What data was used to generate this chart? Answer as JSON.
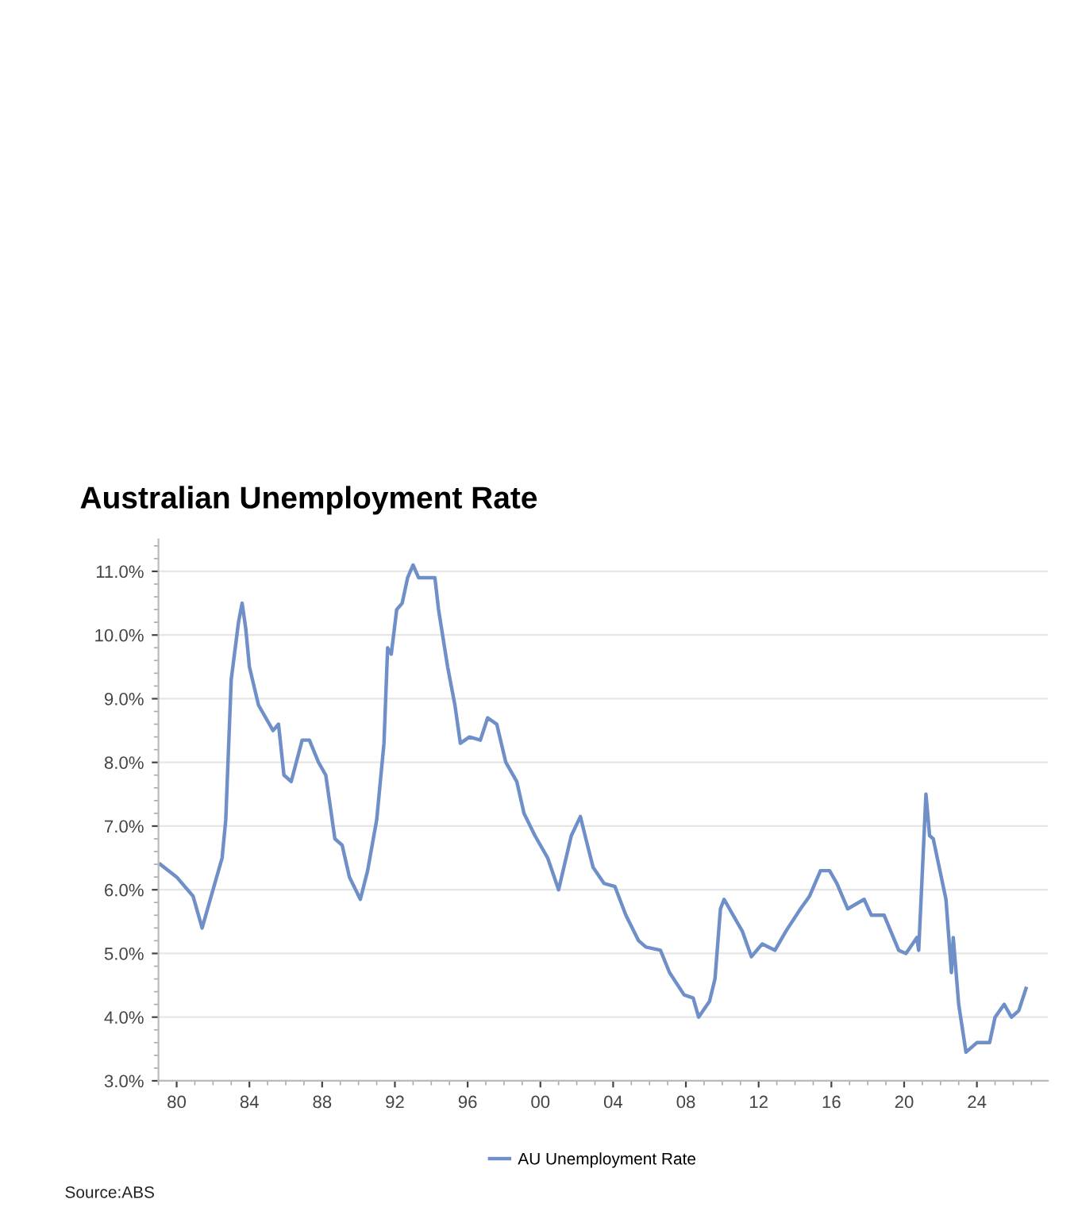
{
  "chart_data": {
    "type": "line",
    "title": "Australian Unemployment Rate",
    "x": [
      1979.1,
      1980.0,
      1980.9,
      1981.4,
      1981.9,
      1982.5,
      1982.7,
      1983.0,
      1983.4,
      1983.6,
      1983.8,
      1984.0,
      1984.5,
      1985.3,
      1985.6,
      1985.9,
      1986.3,
      1986.9,
      1987.3,
      1987.8,
      1988.2,
      1988.4,
      1988.7,
      1989.1,
      1989.5,
      1990.1,
      1990.5,
      1991.0,
      1991.4,
      1991.6,
      1991.8,
      1992.1,
      1992.4,
      1992.7,
      1993.0,
      1993.3,
      1993.7,
      1994.2,
      1994.4,
      1994.9,
      1995.3,
      1995.6,
      1996.1,
      1996.7,
      1997.1,
      1997.6,
      1998.1,
      1998.7,
      1999.1,
      1999.7,
      2000.4,
      2001.0,
      2001.7,
      2002.2,
      2002.5,
      2002.9,
      2003.5,
      2004.1,
      2004.7,
      2005.4,
      2005.8,
      2006.6,
      2007.1,
      2007.9,
      2008.4,
      2008.7,
      2009.3,
      2009.6,
      2009.9,
      2010.1,
      2010.6,
      2011.1,
      2011.6,
      2012.2,
      2012.9,
      2013.5,
      2014.3,
      2014.8,
      2015.4,
      2015.9,
      2016.3,
      2016.9,
      2017.8,
      2018.2,
      2018.9,
      2019.7,
      2020.1,
      2020.7,
      2020.8,
      2021.2,
      2021.4,
      2021.6,
      2022.3,
      2022.6,
      2022.7,
      2023.0,
      2023.4,
      2024.0,
      2024.7,
      2025.0,
      2025.5,
      2025.9,
      2026.3,
      2026.7
    ],
    "series": [
      {
        "name": "AU Unemployment Rate",
        "color": "#6f8fc9",
        "values": [
          6.4,
          6.2,
          5.9,
          5.4,
          5.9,
          6.5,
          7.1,
          9.3,
          10.2,
          10.5,
          10.1,
          9.5,
          8.9,
          8.5,
          8.6,
          7.8,
          7.7,
          8.35,
          8.35,
          8.0,
          7.8,
          7.4,
          6.8,
          6.7,
          6.2,
          5.85,
          6.3,
          7.1,
          8.3,
          9.8,
          9.7,
          10.4,
          10.5,
          10.9,
          11.1,
          10.9,
          10.9,
          10.9,
          10.4,
          9.5,
          8.9,
          8.3,
          8.4,
          8.35,
          8.7,
          8.6,
          8.0,
          7.7,
          7.2,
          6.85,
          6.5,
          6.0,
          6.85,
          7.15,
          6.8,
          6.35,
          6.1,
          6.05,
          5.6,
          5.2,
          5.1,
          5.05,
          4.7,
          4.35,
          4.3,
          4.0,
          4.25,
          4.6,
          5.7,
          5.85,
          5.6,
          5.35,
          4.95,
          5.15,
          5.05,
          5.35,
          5.7,
          5.9,
          6.3,
          6.3,
          6.1,
          5.7,
          5.85,
          5.6,
          5.6,
          5.05,
          5.0,
          5.25,
          5.05,
          7.5,
          6.85,
          6.8,
          5.85,
          4.7,
          5.25,
          4.2,
          3.45,
          3.6,
          3.6,
          4.0,
          4.2,
          4.0,
          4.1,
          4.45
        ]
      }
    ],
    "xlim": [
      1979.0,
      2027.9
    ],
    "xticks": [
      {
        "value": 1980,
        "label": "80"
      },
      {
        "value": 1984,
        "label": "84"
      },
      {
        "value": 1988,
        "label": "88"
      },
      {
        "value": 1992,
        "label": "92"
      },
      {
        "value": 1996,
        "label": "96"
      },
      {
        "value": 2000,
        "label": "00"
      },
      {
        "value": 2004,
        "label": "04"
      },
      {
        "value": 2008,
        "label": "08"
      },
      {
        "value": 2012,
        "label": "12"
      },
      {
        "value": 2016,
        "label": "16"
      },
      {
        "value": 2020,
        "label": "20"
      },
      {
        "value": 2024,
        "label": "24"
      }
    ],
    "ylim": [
      3.0,
      11.5
    ],
    "yticks": [
      {
        "value": 3,
        "label": "3.0%"
      },
      {
        "value": 4,
        "label": "4.0%"
      },
      {
        "value": 5,
        "label": "5.0%"
      },
      {
        "value": 6,
        "label": "6.0%"
      },
      {
        "value": 7,
        "label": "7.0%"
      },
      {
        "value": 8,
        "label": "8.0%"
      },
      {
        "value": 9,
        "label": "9.0%"
      },
      {
        "value": 10,
        "label": "10.0%"
      },
      {
        "value": 11,
        "label": "11.0%"
      }
    ],
    "grid": "y",
    "legend": "bottom",
    "marker": "none",
    "line_style": "solid",
    "annotations": [
      "Source:ABS"
    ]
  }
}
